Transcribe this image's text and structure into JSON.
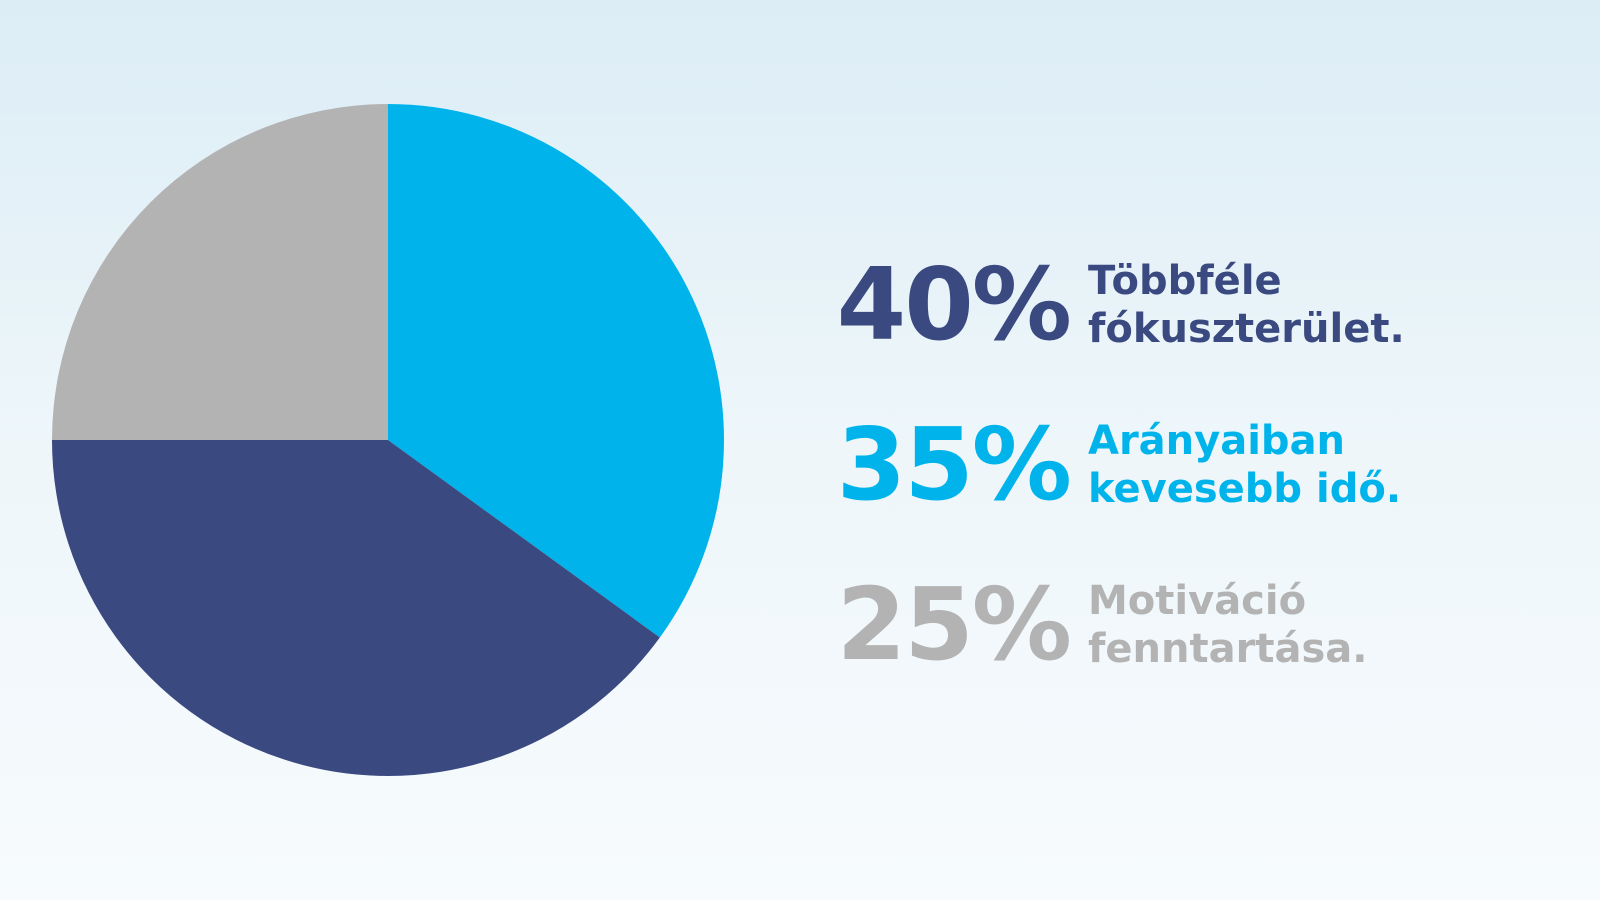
{
  "chart_data": {
    "type": "pie",
    "categories": [
      "Többféle fókuszterület.",
      "Arányaiban kevesebb idő.",
      "Motiváció fenntartása."
    ],
    "values": [
      40,
      35,
      25
    ],
    "value_labels": [
      "40%",
      "35%",
      "25%"
    ],
    "colors": [
      "#3a4a80",
      "#00b4eb",
      "#b3b3b3"
    ]
  }
}
